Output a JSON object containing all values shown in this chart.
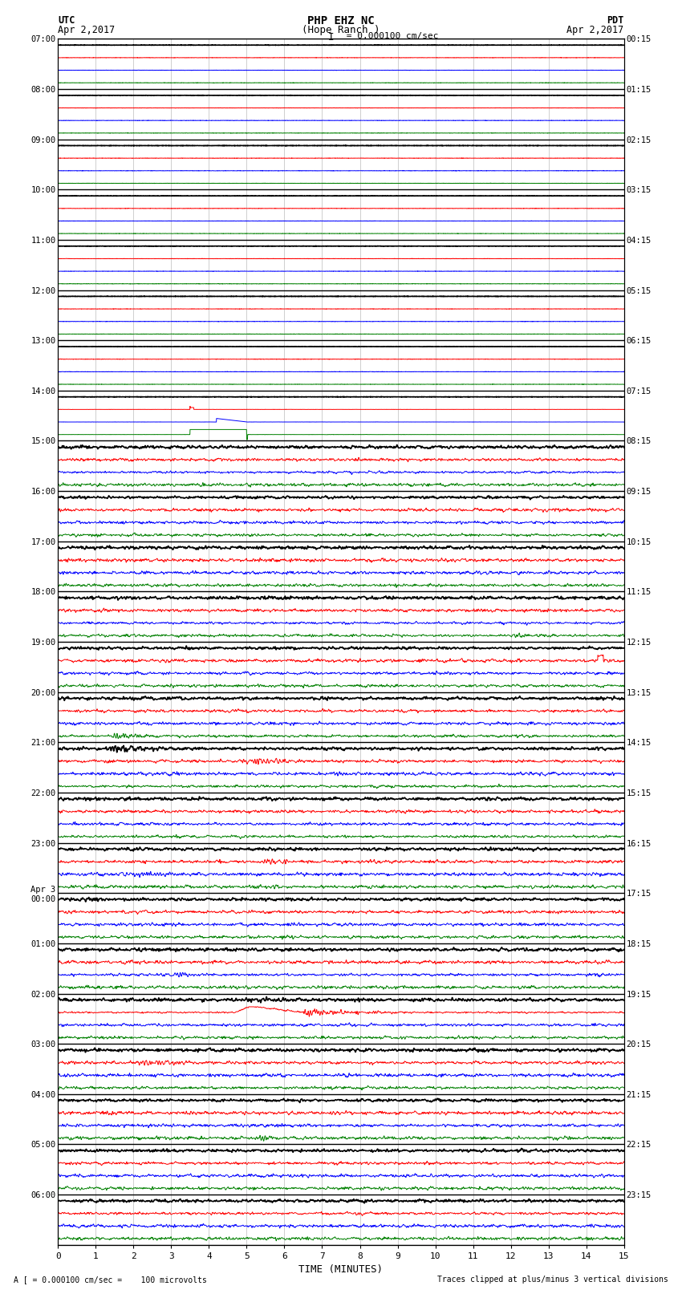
{
  "title_line1": "PHP EHZ NC",
  "title_line2": "(Hope Ranch )",
  "title_line3": "I = 0.000100 cm/sec",
  "left_label_top": "UTC",
  "left_label_date": "Apr 2,2017",
  "right_label_top": "PDT",
  "right_label_date": "Apr 2,2017",
  "bottom_label": "TIME (MINUTES)",
  "footer_left": "A [ = 0.000100 cm/sec =    100 microvolts",
  "footer_right": "Traces clipped at plus/minus 3 vertical divisions",
  "utc_labels": [
    "07:00",
    "08:00",
    "09:00",
    "10:00",
    "11:00",
    "12:00",
    "13:00",
    "14:00",
    "15:00",
    "16:00",
    "17:00",
    "18:00",
    "19:00",
    "20:00",
    "21:00",
    "22:00",
    "23:00",
    "Apr 3\n00:00",
    "01:00",
    "02:00",
    "03:00",
    "04:00",
    "05:00",
    "06:00"
  ],
  "pdt_labels": [
    "00:15",
    "01:15",
    "02:15",
    "03:15",
    "04:15",
    "05:15",
    "06:15",
    "07:15",
    "08:15",
    "09:15",
    "10:15",
    "11:15",
    "12:15",
    "13:15",
    "14:15",
    "15:15",
    "16:15",
    "17:15",
    "18:15",
    "19:15",
    "20:15",
    "21:15",
    "22:15",
    "23:15"
  ],
  "colors": [
    "black",
    "red",
    "blue",
    "green"
  ],
  "bg_color": "white",
  "num_groups": 24,
  "x_ticks": [
    0,
    1,
    2,
    3,
    4,
    5,
    6,
    7,
    8,
    9,
    10,
    11,
    12,
    13,
    14,
    15
  ]
}
